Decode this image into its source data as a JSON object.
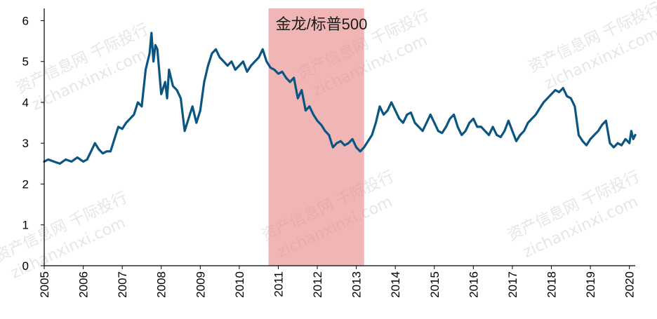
{
  "chart_data": {
    "type": "line",
    "title": "",
    "xlabel": "",
    "ylabel": "",
    "ylim": [
      0,
      6.3
    ],
    "xlim": [
      2005.0,
      2020.15
    ],
    "yticks": [
      0,
      1,
      2,
      3,
      4,
      5,
      6
    ],
    "xticks": [
      "2005",
      "2006",
      "2007",
      "2008",
      "2009",
      "2010",
      "2011",
      "2012",
      "2013",
      "2014",
      "2015",
      "2016",
      "2017",
      "2018",
      "2019",
      "2020"
    ],
    "grid": false,
    "legend": "none",
    "series": [
      {
        "color": "#0b5582",
        "x": [
          2005.0,
          2005.1,
          2005.25,
          2005.4,
          2005.55,
          2005.7,
          2005.85,
          2006.0,
          2006.1,
          2006.2,
          2006.3,
          2006.4,
          2006.5,
          2006.6,
          2006.7,
          2006.8,
          2006.9,
          2007.0,
          2007.1,
          2007.2,
          2007.3,
          2007.4,
          2007.5,
          2007.6,
          2007.7,
          2007.75,
          2007.8,
          2007.85,
          2007.9,
          2008.0,
          2008.1,
          2008.15,
          2008.2,
          2008.3,
          2008.4,
          2008.5,
          2008.6,
          2008.7,
          2008.8,
          2008.9,
          2009.0,
          2009.1,
          2009.2,
          2009.3,
          2009.4,
          2009.5,
          2009.6,
          2009.7,
          2009.8,
          2009.9,
          2010.0,
          2010.1,
          2010.2,
          2010.3,
          2010.4,
          2010.5,
          2010.6,
          2010.7,
          2010.8,
          2010.9,
          2011.0,
          2011.1,
          2011.2,
          2011.3,
          2011.4,
          2011.5,
          2011.6,
          2011.7,
          2011.8,
          2011.9,
          2012.0,
          2012.1,
          2012.2,
          2012.3,
          2012.4,
          2012.5,
          2012.6,
          2012.7,
          2012.8,
          2012.9,
          2013.0,
          2013.1,
          2013.2,
          2013.3,
          2013.4,
          2013.5,
          2013.6,
          2013.7,
          2013.8,
          2013.9,
          2014.0,
          2014.1,
          2014.2,
          2014.3,
          2014.4,
          2014.5,
          2014.6,
          2014.7,
          2014.8,
          2014.9,
          2015.0,
          2015.1,
          2015.2,
          2015.3,
          2015.4,
          2015.5,
          2015.6,
          2015.7,
          2015.8,
          2015.9,
          2016.0,
          2016.1,
          2016.2,
          2016.3,
          2016.4,
          2016.5,
          2016.6,
          2016.7,
          2016.8,
          2016.9,
          2017.0,
          2017.1,
          2017.2,
          2017.3,
          2017.4,
          2017.5,
          2017.6,
          2017.7,
          2017.8,
          2017.9,
          2018.0,
          2018.1,
          2018.2,
          2018.3,
          2018.4,
          2018.5,
          2018.6,
          2018.7,
          2018.8,
          2018.9,
          2019.0,
          2019.1,
          2019.2,
          2019.3,
          2019.4,
          2019.5,
          2019.6,
          2019.7,
          2019.8,
          2019.9,
          2020.0,
          2020.05,
          2020.1,
          2020.15
        ],
        "values": [
          2.55,
          2.6,
          2.55,
          2.5,
          2.6,
          2.55,
          2.65,
          2.55,
          2.6,
          2.8,
          3.0,
          2.85,
          2.75,
          2.8,
          2.8,
          3.1,
          3.4,
          3.35,
          3.5,
          3.6,
          3.7,
          4.0,
          3.9,
          4.8,
          5.2,
          5.7,
          5.0,
          5.4,
          5.3,
          4.2,
          4.5,
          4.1,
          4.8,
          4.4,
          4.3,
          4.1,
          3.3,
          3.6,
          3.9,
          3.5,
          3.8,
          4.5,
          4.9,
          5.2,
          5.3,
          5.1,
          5.0,
          4.9,
          5.0,
          4.8,
          4.9,
          5.0,
          4.75,
          4.9,
          5.0,
          5.1,
          5.3,
          5.0,
          4.85,
          4.8,
          4.7,
          4.75,
          4.6,
          4.5,
          4.6,
          4.1,
          4.3,
          3.8,
          3.9,
          3.7,
          3.55,
          3.45,
          3.3,
          3.2,
          2.9,
          3.0,
          3.05,
          2.95,
          3.0,
          3.1,
          2.9,
          2.8,
          2.9,
          3.05,
          3.2,
          3.5,
          3.9,
          3.7,
          3.8,
          4.0,
          3.8,
          3.6,
          3.5,
          3.7,
          3.75,
          3.5,
          3.4,
          3.3,
          3.5,
          3.7,
          3.5,
          3.3,
          3.25,
          3.4,
          3.6,
          3.7,
          3.4,
          3.2,
          3.3,
          3.5,
          3.6,
          3.4,
          3.4,
          3.3,
          3.2,
          3.4,
          3.2,
          3.15,
          3.3,
          3.55,
          3.3,
          3.05,
          3.2,
          3.3,
          3.5,
          3.6,
          3.7,
          3.85,
          4.0,
          4.1,
          4.2,
          4.3,
          4.25,
          4.35,
          4.15,
          4.1,
          3.9,
          3.2,
          3.05,
          2.95,
          3.1,
          3.2,
          3.3,
          3.45,
          3.55,
          3.0,
          2.9,
          3.0,
          2.95,
          3.1,
          3.0,
          3.3,
          3.1,
          3.2
        ],
        "width": 3.2
      }
    ],
    "shaded_region": {
      "x": [
        2010.75,
        2013.2
      ],
      "color": "#e88f8f",
      "label": "金龙/标普500"
    }
  },
  "watermarks": [
    "资产信息网 千际投行",
    "zichanxinxi.com"
  ]
}
